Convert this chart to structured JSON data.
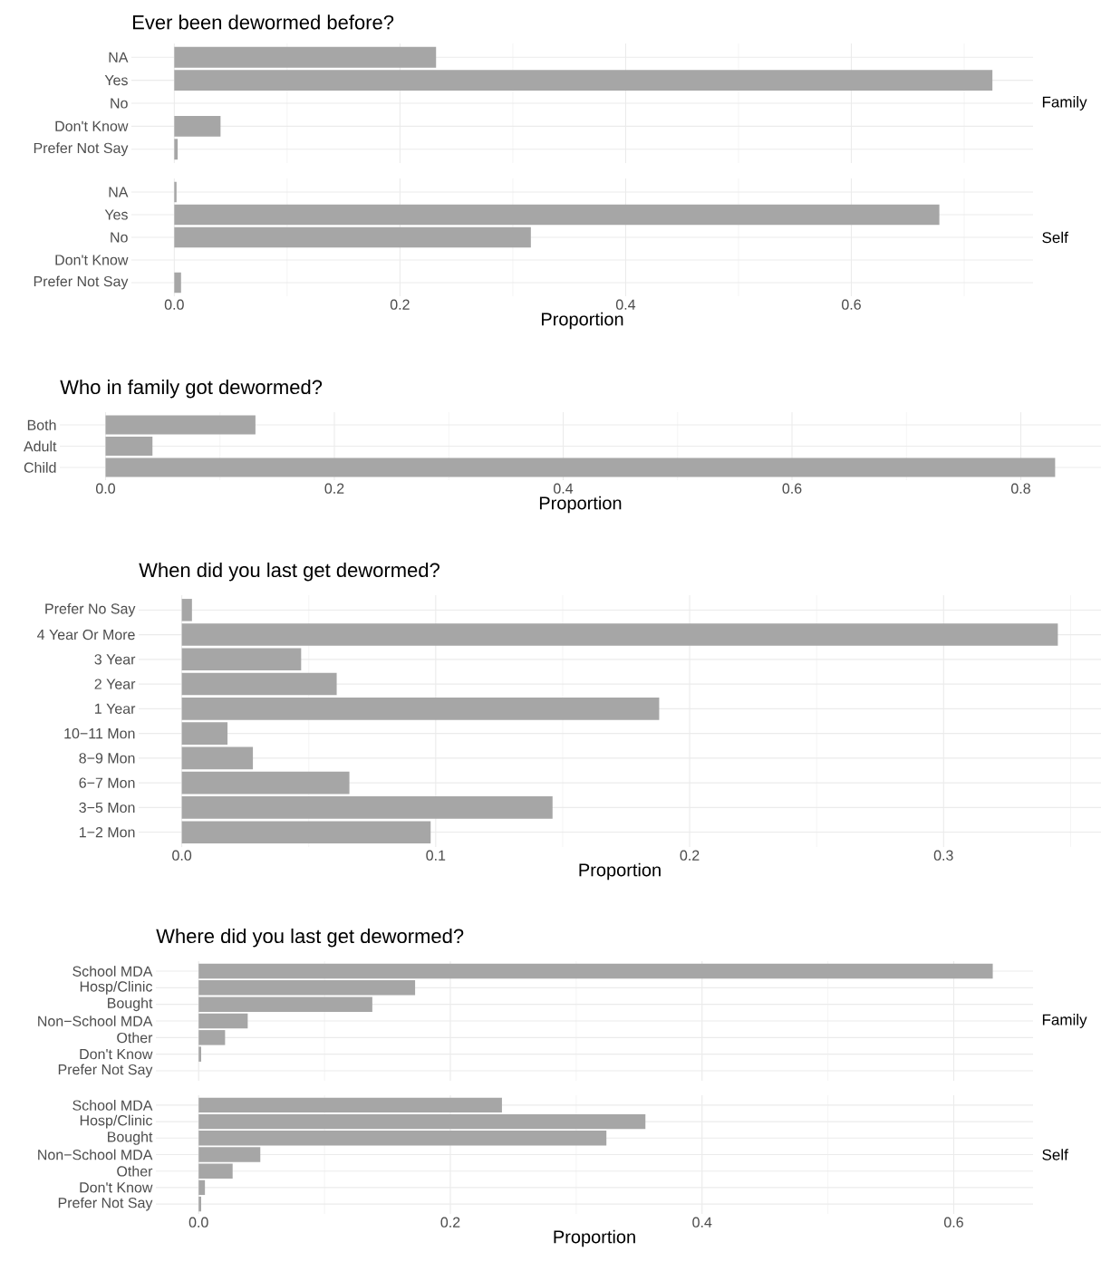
{
  "chart_data": [
    {
      "type": "bar",
      "orientation": "horizontal",
      "title": "Ever been dewormed before?",
      "categories": [
        "NA",
        "Yes",
        "No",
        "Don't Know",
        "Prefer Not Say"
      ],
      "values": [
        0.232,
        0.725,
        0,
        0.041,
        0.003
      ],
      "color": "#a6a6a6",
      "xlim": [
        -0.038,
        0.761
      ],
      "xticks": [
        0,
        {
          "value": 0.1,
          "label": null
        },
        0.2,
        {
          "value": 0.3,
          "label": null
        },
        0.4,
        {
          "value": 0.5,
          "label": null
        },
        0.6,
        {
          "value": 0.7,
          "label": null
        }
      ],
      "grid": true,
      "tick_labels": "y",
      "annotations": [
        "Family"
      ]
    },
    {
      "type": "bar",
      "orientation": "horizontal",
      "xlabel": "Proportion",
      "categories": [
        "NA",
        "Yes",
        "No",
        "Don't Know",
        "Prefer Not Say"
      ],
      "values": [
        0.002,
        0.678,
        0.316,
        0,
        0.006
      ],
      "color": "#a6a6a6",
      "xlim": [
        -0.038,
        0.761
      ],
      "xticks": [
        {
          "value": 0,
          "label": "0.0"
        },
        {
          "value": 0.1,
          "label": null
        },
        0.2,
        {
          "value": 0.3,
          "label": null
        },
        0.4,
        {
          "value": 0.5,
          "label": null
        },
        0.6,
        {
          "value": 0.7,
          "label": null
        }
      ],
      "grid": true,
      "annotations": [
        "Self"
      ]
    },
    {
      "type": "bar",
      "orientation": "horizontal",
      "title": "Who in family got dewormed?",
      "xlabel": "Proportion",
      "categories": [
        "Both",
        "Adult",
        "Child"
      ],
      "values": [
        0.131,
        0.041,
        0.83
      ],
      "color": "#a6a6a6",
      "xlim": [
        -0.04,
        0.87
      ],
      "xticks": [
        {
          "value": 0,
          "label": "0.0"
        },
        {
          "value": 0.1,
          "label": null
        },
        0.2,
        {
          "value": 0.3,
          "label": null
        },
        0.4,
        {
          "value": 0.5,
          "label": null
        },
        0.6,
        {
          "value": 0.7,
          "label": null
        },
        0.8
      ],
      "grid": true
    },
    {
      "type": "bar",
      "orientation": "horizontal",
      "title": "When did you last get dewormed?",
      "xlabel": "Proportion",
      "categories": [
        "Prefer No Say",
        "4 Year Or More",
        "3 Year",
        "2 Year",
        "1 Year",
        "10−11 Mon",
        "8−9 Mon",
        "6−7 Mon",
        "3−5 Mon",
        "1−2 Mon"
      ],
      "values": [
        0.004,
        0.345,
        0.047,
        0.061,
        0.188,
        0.018,
        0.028,
        0.066,
        0.146,
        0.098
      ],
      "color": "#a6a6a6",
      "xlim": [
        -0.017,
        0.362
      ],
      "xticks": [
        {
          "value": 0,
          "label": "0.0"
        },
        {
          "value": 0.05,
          "label": null
        },
        0.1,
        {
          "value": 0.15,
          "label": null
        },
        0.2,
        {
          "value": 0.25,
          "label": null
        },
        0.3,
        {
          "value": 0.35,
          "label": null
        }
      ],
      "grid": true
    },
    {
      "type": "bar",
      "orientation": "horizontal",
      "title": "Where did you last get dewormed?",
      "categories": [
        "School MDA",
        "Hosp/Clinic",
        "Bought",
        "Non−School MDA",
        "Other",
        "Don't Know",
        "Prefer Not Say"
      ],
      "values": [
        0.631,
        0.172,
        0.138,
        0.039,
        0.021,
        0.002,
        0
      ],
      "color": "#a6a6a6",
      "xlim": [
        -0.034,
        0.663
      ],
      "xticks": [
        0,
        {
          "value": 0.1,
          "label": null
        },
        0.2,
        {
          "value": 0.3,
          "label": null
        },
        0.4,
        {
          "value": 0.5,
          "label": null
        },
        0.6
      ],
      "grid": true,
      "tick_labels": "y",
      "annotations": [
        "Family"
      ]
    },
    {
      "type": "bar",
      "orientation": "horizontal",
      "xlabel": "Proportion",
      "categories": [
        "School MDA",
        "Hosp/Clinic",
        "Bought",
        "Non−School MDA",
        "Other",
        "Don't Know",
        "Prefer Not Say"
      ],
      "values": [
        0.241,
        0.355,
        0.324,
        0.049,
        0.027,
        0.005,
        0.002
      ],
      "color": "#a6a6a6",
      "xlim": [
        -0.034,
        0.663
      ],
      "xticks": [
        {
          "value": 0,
          "label": "0.0"
        },
        {
          "value": 0.1,
          "label": null
        },
        0.2,
        {
          "value": 0.3,
          "label": null
        },
        0.4,
        {
          "value": 0.5,
          "label": null
        },
        0.6
      ],
      "grid": true,
      "annotations": [
        "Self"
      ]
    }
  ]
}
